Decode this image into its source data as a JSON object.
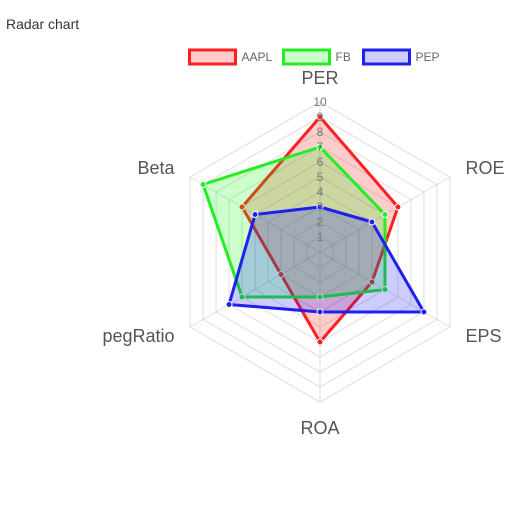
{
  "page": {
    "title": "Radar chart"
  },
  "chart_data": {
    "type": "radar",
    "axes": [
      "PER",
      "ROE",
      "EPS",
      "ROA",
      "pegRatio",
      "Beta"
    ],
    "scale": {
      "min": 0,
      "max": 10,
      "step": 1
    },
    "ticks": [
      "1",
      "2",
      "3",
      "4",
      "5",
      "6",
      "7",
      "8",
      "9",
      "10"
    ],
    "legend_position": "top",
    "series": [
      {
        "name": "AAPL",
        "values": [
          9,
          6,
          4,
          6,
          3,
          6
        ],
        "color": "#ff2020",
        "fill": "rgba(255,0,0,0.2)"
      },
      {
        "name": "FB",
        "values": [
          7,
          5,
          5,
          3,
          6,
          9
        ],
        "color": "#22ee22",
        "fill": "rgba(0,255,0,0.2)"
      },
      {
        "name": "PEP",
        "values": [
          3,
          4,
          8,
          4,
          7,
          5
        ],
        "color": "#2020ee",
        "fill": "rgba(0,0,255,0.2)"
      }
    ]
  }
}
